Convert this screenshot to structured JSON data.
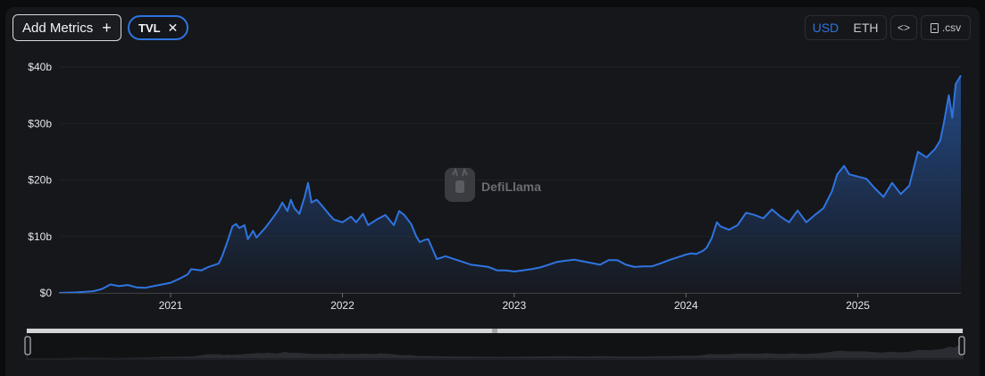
{
  "toolbar": {
    "add_metrics_label": "Add Metrics",
    "add_icon": "plus-icon",
    "metric_chip_label": "TVL",
    "close_icon": "close-icon",
    "currency_usd": "USD",
    "currency_eth": "ETH",
    "embed_label": "<>",
    "csv_label": ".csv",
    "csv_icon": "file-icon"
  },
  "watermark": {
    "text": "DefiLlama",
    "icon": "llama-logo-icon"
  },
  "colors": {
    "line": "#2f74e0",
    "accent": "#2f74e0",
    "panel": "#16171a",
    "text": "#e6e7ea"
  },
  "chart_data": {
    "type": "area",
    "title": "",
    "xlabel": "",
    "ylabel": "",
    "x_tick_labels": [
      "2021",
      "2022",
      "2023",
      "2024",
      "2025"
    ],
    "y_tick_labels": [
      "$0",
      "$10b",
      "$20b",
      "$30b",
      "$40b"
    ],
    "y_ticks": [
      0,
      10,
      20,
      30,
      40
    ],
    "ylim": [
      0,
      40
    ],
    "xlim": [
      2020.35,
      2025.6
    ],
    "grid": false,
    "series": [
      {
        "unit": "billion USD",
        "x": [
          2020.35,
          2020.45,
          2020.55,
          2020.6,
          2020.65,
          2020.7,
          2020.75,
          2020.8,
          2020.85,
          2020.9,
          2020.95,
          2021.0,
          2021.05,
          2021.1,
          2021.12,
          2021.18,
          2021.22,
          2021.28,
          2021.3,
          2021.33,
          2021.36,
          2021.38,
          2021.4,
          2021.43,
          2021.45,
          2021.48,
          2021.5,
          2021.55,
          2021.6,
          2021.63,
          2021.65,
          2021.68,
          2021.7,
          2021.72,
          2021.75,
          2021.78,
          2021.8,
          2021.82,
          2021.85,
          2021.88,
          2021.92,
          2021.95,
          2022.0,
          2022.05,
          2022.08,
          2022.12,
          2022.15,
          2022.2,
          2022.25,
          2022.3,
          2022.33,
          2022.36,
          2022.4,
          2022.43,
          2022.45,
          2022.48,
          2022.5,
          2022.55,
          2022.6,
          2022.65,
          2022.7,
          2022.75,
          2022.8,
          2022.85,
          2022.9,
          2022.95,
          2023.0,
          2023.05,
          2023.1,
          2023.15,
          2023.2,
          2023.25,
          2023.3,
          2023.35,
          2023.4,
          2023.45,
          2023.5,
          2023.55,
          2023.6,
          2023.65,
          2023.7,
          2023.75,
          2023.8,
          2023.85,
          2023.9,
          2023.95,
          2024.0,
          2024.03,
          2024.06,
          2024.1,
          2024.12,
          2024.15,
          2024.18,
          2024.2,
          2024.25,
          2024.3,
          2024.35,
          2024.4,
          2024.45,
          2024.5,
          2024.55,
          2024.6,
          2024.65,
          2024.7,
          2024.75,
          2024.8,
          2024.85,
          2024.88,
          2024.92,
          2024.95,
          2025.0,
          2025.05,
          2025.1,
          2025.15,
          2025.2,
          2025.25,
          2025.3,
          2025.35,
          2025.4,
          2025.45,
          2025.48,
          2025.5,
          2025.53,
          2025.55,
          2025.57,
          2025.6
        ],
        "y": [
          0.0,
          0.1,
          0.3,
          0.7,
          1.5,
          1.2,
          1.4,
          1.0,
          0.9,
          1.2,
          1.5,
          1.8,
          2.5,
          3.3,
          4.2,
          4.0,
          4.6,
          5.2,
          6.5,
          9.0,
          11.8,
          12.2,
          11.5,
          12.0,
          9.5,
          11.0,
          9.8,
          11.5,
          13.5,
          14.8,
          16.0,
          14.5,
          16.5,
          15.0,
          14.0,
          17.0,
          19.5,
          16.0,
          16.5,
          15.5,
          14.0,
          13.0,
          12.5,
          13.5,
          12.5,
          14.0,
          12.0,
          13.0,
          13.8,
          12.0,
          14.5,
          13.8,
          12.2,
          10.0,
          9.0,
          9.4,
          9.5,
          6.0,
          6.5,
          6.0,
          5.5,
          5.0,
          4.8,
          4.6,
          4.0,
          4.0,
          3.8,
          4.0,
          4.2,
          4.5,
          5.0,
          5.5,
          5.7,
          5.9,
          5.6,
          5.3,
          5.0,
          5.8,
          5.8,
          5.0,
          4.6,
          4.7,
          4.7,
          5.2,
          5.8,
          6.3,
          6.8,
          7.0,
          6.9,
          7.5,
          8.0,
          9.7,
          12.5,
          11.8,
          11.2,
          12.0,
          14.2,
          13.8,
          13.2,
          14.8,
          13.5,
          12.5,
          14.6,
          12.5,
          13.8,
          15.0,
          18.0,
          21.0,
          22.5,
          21.0,
          20.6,
          20.2,
          18.5,
          17.0,
          19.5,
          17.5,
          19.0,
          25.0,
          24.0,
          25.5,
          27.0,
          30.0,
          35.0,
          31.0,
          37.0,
          38.5
        ]
      }
    ]
  }
}
